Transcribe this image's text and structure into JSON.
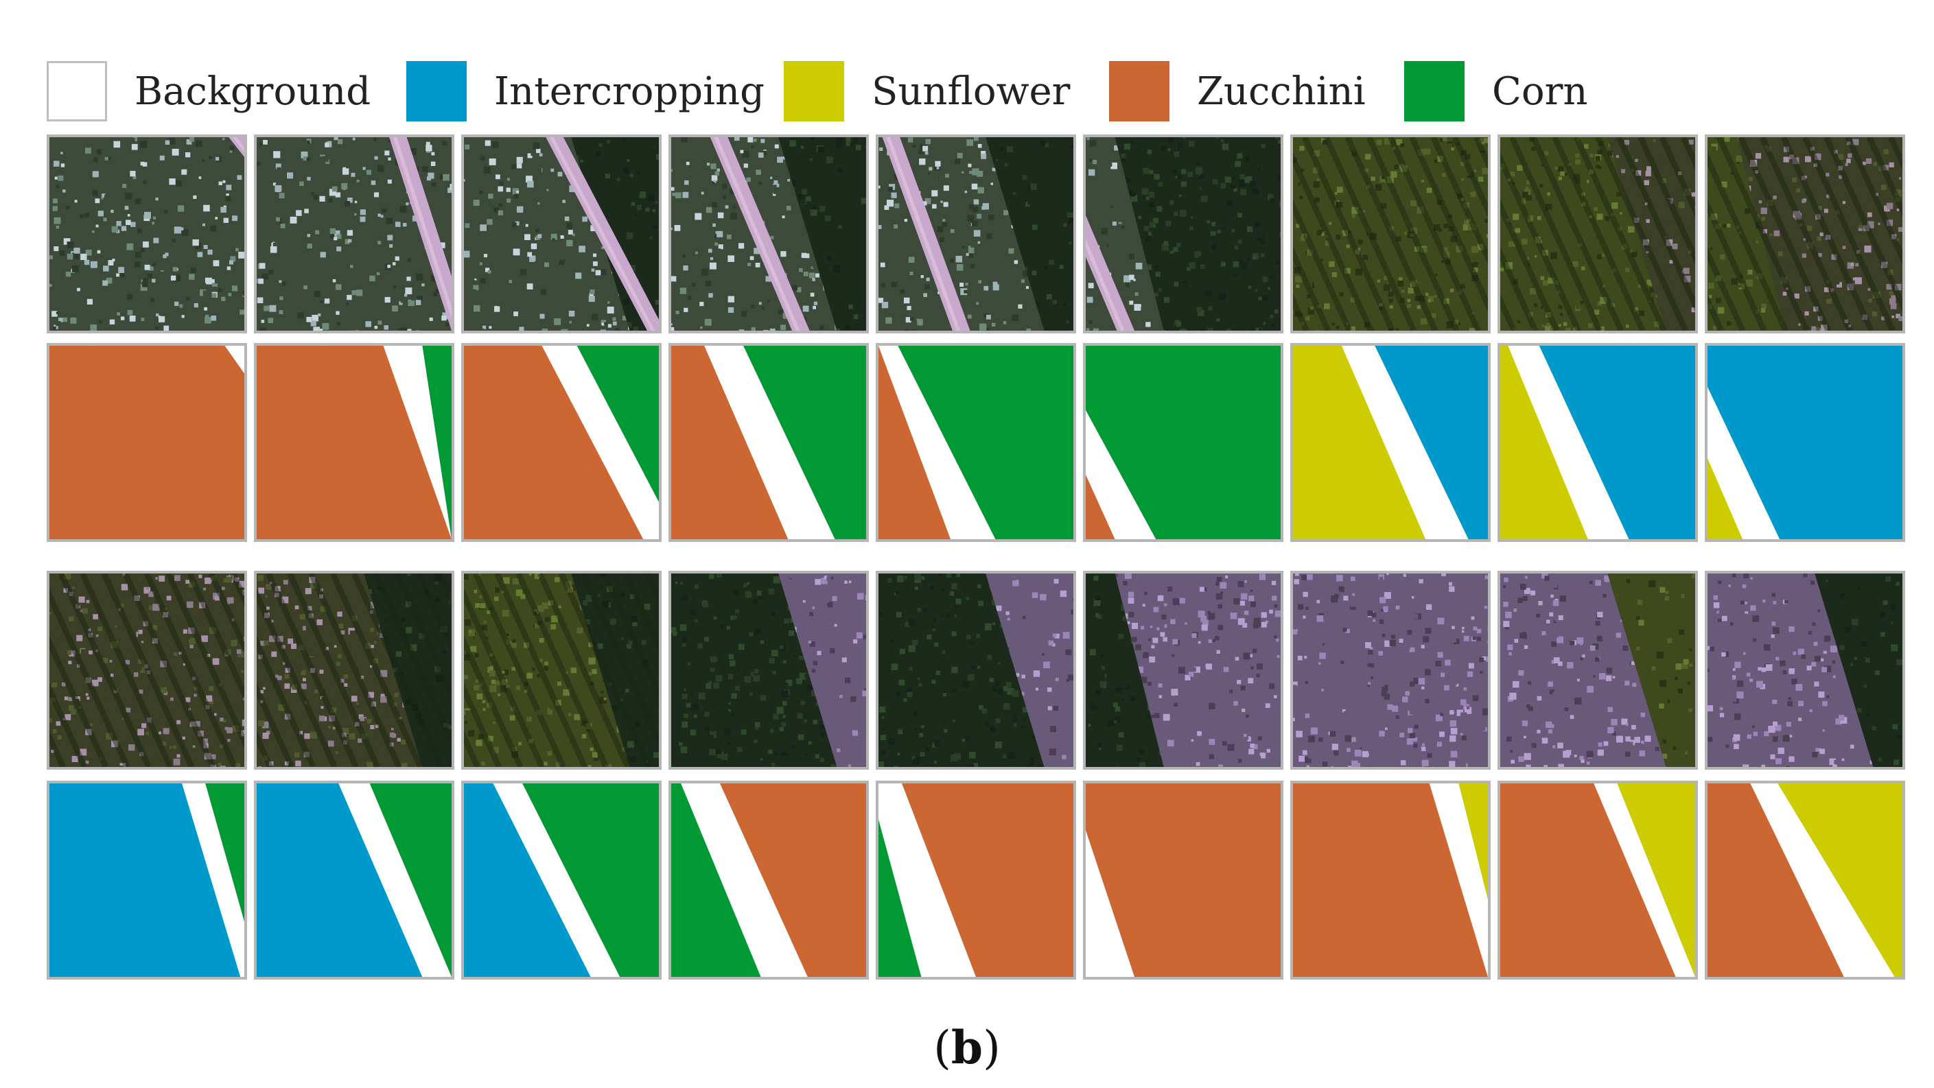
{
  "legend": {
    "items": [
      {
        "label": "Background",
        "color": "#ffffff"
      },
      {
        "label": "Intercropping",
        "color": "#0099cc"
      },
      {
        "label": "Sunflower",
        "color": "#cccc00"
      },
      {
        "label": "Zucchini",
        "color": "#cc6633"
      },
      {
        "label": "Corn",
        "color": "#009933"
      }
    ]
  },
  "caption": {
    "open": "(",
    "letter": "b",
    "close": ")"
  },
  "photo_palettes": {
    "zucchini_canopy": [
      "#3d4a3a",
      "#6f8a7a",
      "#9fb4b8",
      "#2f3a2c",
      "#c6d4dc"
    ],
    "corn_canopy": [
      "#1c2a1c",
      "#2a3f26",
      "#16221a",
      "#304a2c"
    ],
    "sunflower_canopy": [
      "#3e4a1e",
      "#54622a",
      "#2a3316",
      "#677a33"
    ],
    "intercrop_canopy": [
      "#3a3f26",
      "#8a7a8a",
      "#4f5a2e",
      "#a890a8"
    ],
    "flowering": [
      "#6a5a7a",
      "#9c86b8",
      "#4a3f55",
      "#b79fd0"
    ],
    "road": [
      "#c8a8cc",
      "#b092b6",
      "#d8bcd8"
    ]
  }
}
